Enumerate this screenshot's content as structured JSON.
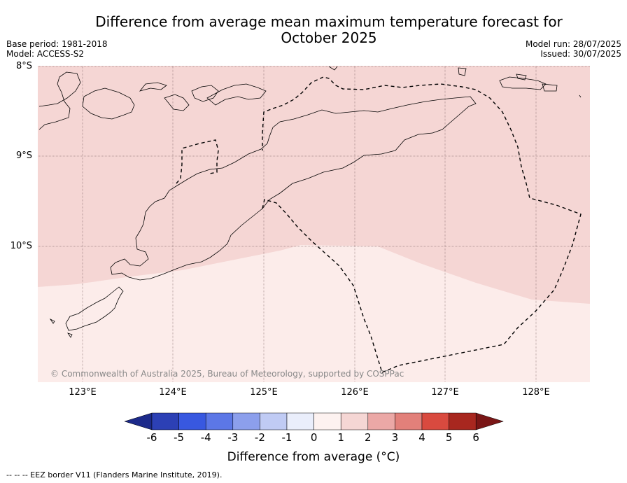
{
  "header": {
    "title_line1": "Difference from average mean maximum temperature forecast for",
    "title_line2": "October 2025",
    "base_period": "Base period: 1981-2018",
    "model": "Model: ACCESS-S2",
    "model_run": "Model run: 28/07/2025",
    "issued": "Issued: 30/07/2025"
  },
  "map": {
    "lat_labels": [
      "8°S",
      "9°S",
      "10°S"
    ],
    "lon_labels": [
      "123°E",
      "124°E",
      "125°E",
      "126°E",
      "127°E",
      "128°E"
    ],
    "copyright": "© Commonwealth of Australia 2025, Bureau of Meteorology, supported by COSPPac",
    "fill_colors": {
      "zone_1_to_2": "#f5d6d4",
      "zone_0_to_1": "#fcecea"
    }
  },
  "colorbar": {
    "ticks": [
      "-6",
      "-5",
      "-4",
      "-3",
      "-2",
      "-1",
      "0",
      "1",
      "2",
      "3",
      "4",
      "5",
      "6"
    ],
    "colors": [
      "#1c2a8a",
      "#2c40b5",
      "#3858e0",
      "#5c77e6",
      "#8c9fec",
      "#c0cbf4",
      "#eaeefb",
      "#fdf2f0",
      "#f5d6d4",
      "#eba8a6",
      "#e2807a",
      "#d94a3f",
      "#a8271f",
      "#7a1616"
    ],
    "label": "Difference from average (°C)"
  },
  "legend": {
    "eez": "--  --  -- EEZ border V11 (Flanders Marine Institute, 2019)."
  }
}
